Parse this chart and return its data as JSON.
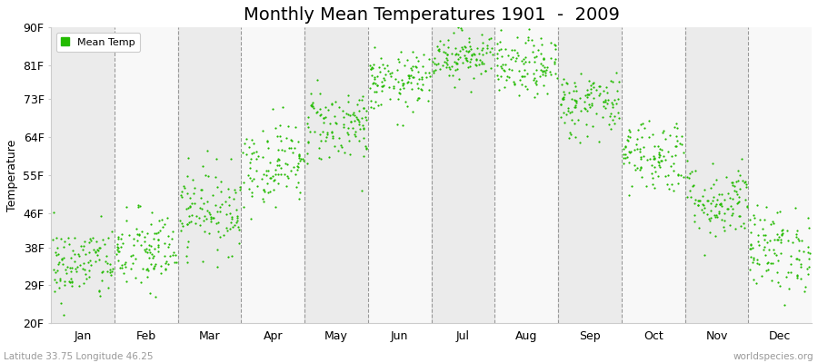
{
  "title": "Monthly Mean Temperatures 1901  -  2009",
  "ylabel": "Temperature",
  "subtitle": "Latitude 33.75 Longitude 46.25",
  "watermark": "worldspecies.org",
  "ytick_labels": [
    "20F",
    "29F",
    "38F",
    "46F",
    "55F",
    "64F",
    "73F",
    "81F",
    "90F"
  ],
  "ytick_values": [
    20,
    29,
    38,
    46,
    55,
    64,
    73,
    81,
    90
  ],
  "ylim": [
    20,
    90
  ],
  "months": [
    "Jan",
    "Feb",
    "Mar",
    "Apr",
    "May",
    "Jun",
    "Jul",
    "Aug",
    "Sep",
    "Oct",
    "Nov",
    "Dec"
  ],
  "dot_color": "#22bb00",
  "dot_size": 2.5,
  "background_color": "#ffffff",
  "band_color_odd": "#ebebeb",
  "band_color_even": "#f8f8f8",
  "n_years": 109,
  "mean_temps_F": [
    34.0,
    37.0,
    47.0,
    58.0,
    67.0,
    77.0,
    83.5,
    80.5,
    72.0,
    60.0,
    49.0,
    37.5
  ],
  "spread_F": [
    4.5,
    5.0,
    5.0,
    5.0,
    4.5,
    3.5,
    3.0,
    3.5,
    4.0,
    4.5,
    4.5,
    5.0
  ],
  "legend_label": "Mean Temp",
  "title_fontsize": 14,
  "axis_fontsize": 9,
  "tick_fontsize": 9
}
